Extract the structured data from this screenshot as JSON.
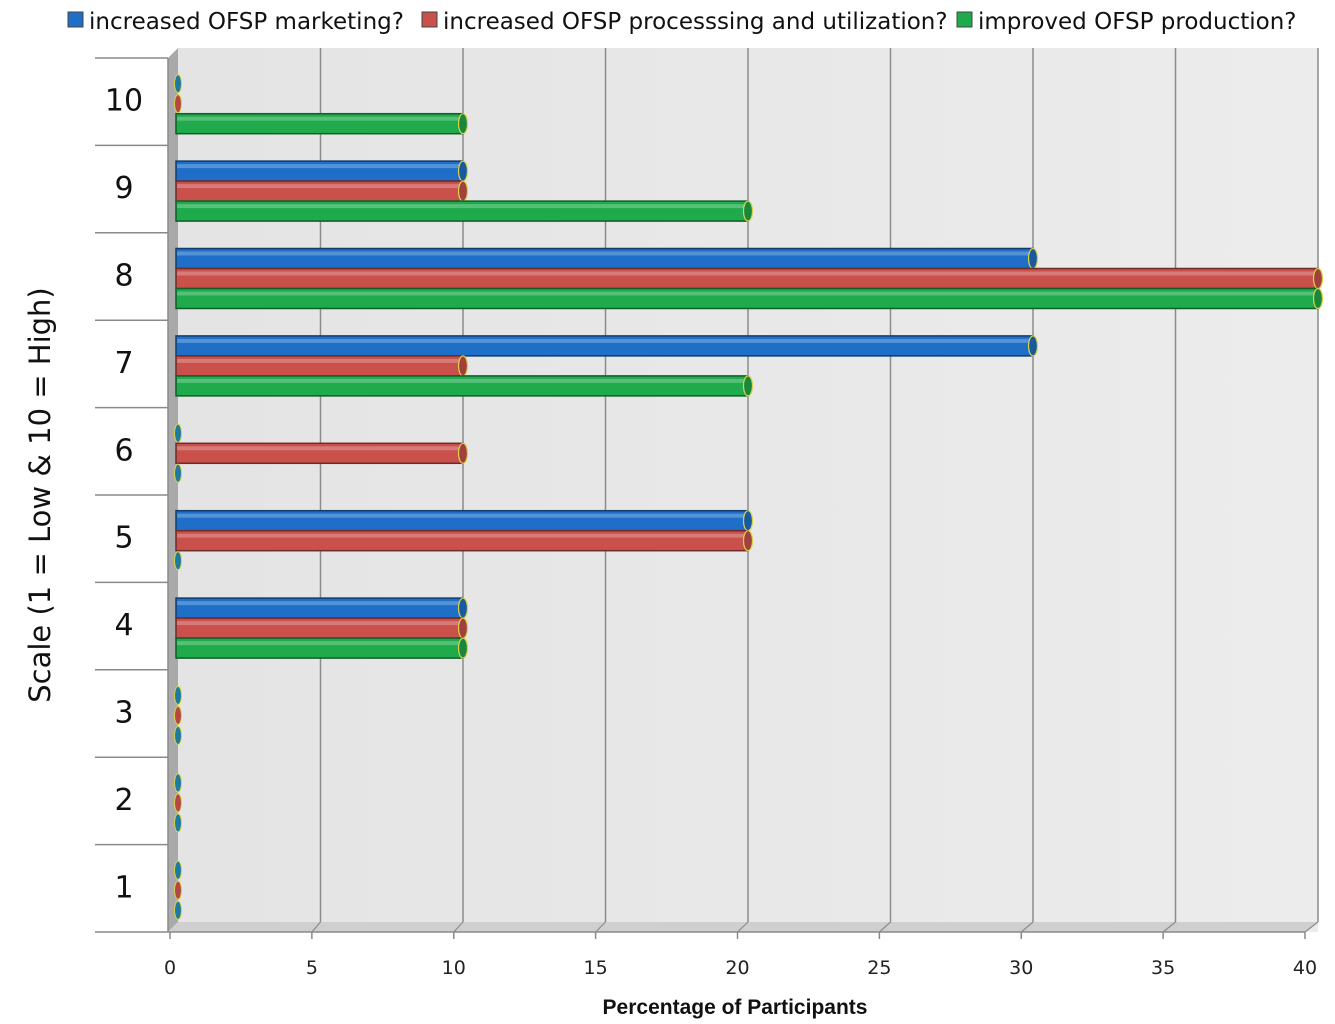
{
  "chart_data": {
    "type": "bar",
    "orientation": "horizontal",
    "categories": [
      "1",
      "2",
      "3",
      "4",
      "5",
      "6",
      "7",
      "8",
      "9",
      "10"
    ],
    "series": [
      {
        "name": "increased OFSP marketing?",
        "color": "#1f6fc8",
        "values": [
          0,
          0,
          0,
          10,
          20,
          0,
          30,
          30,
          10,
          0
        ]
      },
      {
        "name": "increased OFSP processsing and utilization?",
        "color": "#c9504b",
        "values": [
          0,
          0,
          0,
          10,
          20,
          10,
          10,
          40,
          10,
          0
        ]
      },
      {
        "name": "improved OFSP production?",
        "color": "#1faa4c",
        "values": [
          0,
          0,
          0,
          10,
          0,
          0,
          20,
          40,
          20,
          10
        ]
      }
    ],
    "xlabel": "Percentage of Participants",
    "ylabel": "Scale (1 = Low & 10 = High)",
    "xlim": [
      0,
      40
    ],
    "xticks": [
      "0",
      "5",
      "10",
      "15",
      "20",
      "25",
      "30",
      "35",
      "40"
    ],
    "grid": true,
    "legend": "top"
  }
}
